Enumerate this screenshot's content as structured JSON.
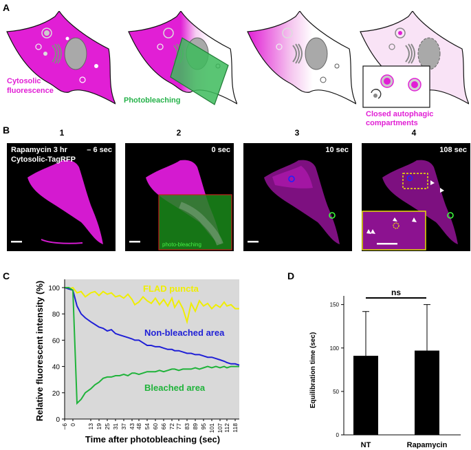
{
  "panel_letters": {
    "a": "A",
    "b": "B",
    "c": "C",
    "d": "D"
  },
  "panelA": {
    "cytosolic": [
      "Cytosolic",
      "fluorescence"
    ],
    "photobleaching": "Photobleaching",
    "closed": [
      "Closed autophagic",
      "compartments"
    ]
  },
  "panelB": {
    "numbers": [
      "1",
      "2",
      "3",
      "4"
    ],
    "times": [
      "– 6 sec",
      "0 sec",
      "10 sec",
      "108 sec"
    ],
    "label_lines": [
      "Rapamycin 3 hr",
      "Cytosolic-TagRFP"
    ],
    "overlay": "photo-bleaching"
  },
  "colors": {
    "magenta": "#e11fd5",
    "green": "#1fb33a",
    "blue": "#1f1fd6",
    "yellow": "#f0ee00",
    "chart_bg": "#d9d9d9"
  },
  "chart_data": [
    {
      "type": "line",
      "xlabel": "Time after photobleaching (sec)",
      "ylabel": "Relative fluorescent intensity (%)",
      "ylim": [
        0,
        100
      ],
      "yticks": [
        0,
        20,
        40,
        60,
        80,
        100
      ],
      "xticklabels": [
        "−6",
        "0",
        "13",
        "19",
        "25",
        "31",
        "37",
        "43",
        "48",
        "54",
        "60",
        "66",
        "72",
        "77",
        "83",
        "89",
        "95",
        "101",
        "107",
        "112",
        "118"
      ],
      "x": [
        -6,
        -3,
        0,
        3,
        6,
        9,
        13,
        16,
        19,
        22,
        25,
        28,
        31,
        34,
        37,
        40,
        43,
        45,
        48,
        51,
        54,
        57,
        60,
        63,
        66,
        69,
        72,
        74,
        77,
        80,
        83,
        86,
        89,
        92,
        95,
        98,
        101,
        104,
        107,
        110,
        112,
        115,
        118,
        121
      ],
      "series": [
        {
          "name": "FLAD puncta",
          "color": "#f0ee00",
          "values": [
            100,
            99,
            100,
            96,
            97,
            93,
            96,
            97,
            94,
            97,
            95,
            96,
            93,
            94,
            92,
            95,
            91,
            87,
            89,
            93,
            90,
            88,
            92,
            87,
            91,
            86,
            92,
            85,
            90,
            84,
            74,
            88,
            82,
            90,
            86,
            88,
            84,
            87,
            85,
            89,
            86,
            87,
            84,
            84
          ]
        },
        {
          "name": "Non-bleached area",
          "color": "#1f1fd6",
          "values": [
            100,
            99,
            98,
            86,
            80,
            77,
            74,
            72,
            70,
            69,
            67,
            68,
            65,
            64,
            63,
            62,
            61,
            60,
            60,
            58,
            56,
            56,
            55,
            55,
            54,
            53,
            53,
            52,
            52,
            51,
            50,
            50,
            49,
            49,
            48,
            47,
            47,
            46,
            45,
            44,
            43,
            42,
            42,
            41
          ]
        },
        {
          "name": "Bleached area",
          "color": "#1fb33a",
          "values": [
            100,
            100,
            98,
            12,
            15,
            20,
            23,
            26,
            28,
            31,
            32,
            32,
            33,
            33,
            34,
            33,
            35,
            35,
            34,
            35,
            36,
            36,
            36,
            37,
            36,
            37,
            38,
            38,
            37,
            38,
            38,
            38,
            39,
            38,
            39,
            40,
            39,
            40,
            39,
            40,
            39,
            40,
            40,
            40
          ]
        }
      ]
    },
    {
      "type": "bar",
      "ylabel": "Equilibration time (sec)",
      "categories": [
        "NT",
        "Rapamycin"
      ],
      "values": [
        91,
        97
      ],
      "errors": [
        51,
        53
      ],
      "ylim": [
        0,
        160
      ],
      "yticks": [
        0,
        50,
        100,
        150
      ],
      "annotation": "ns"
    }
  ]
}
